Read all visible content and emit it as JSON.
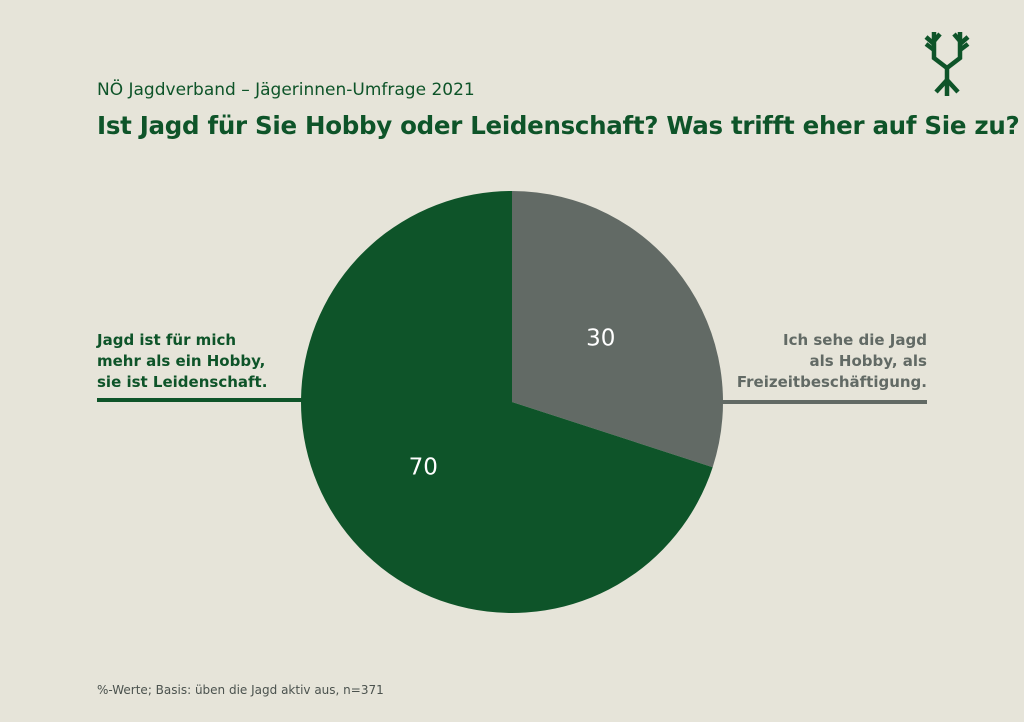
{
  "header": {
    "subtitle": "NÖ Jagdverband – Jägerinnen-Umfrage 2021",
    "title": "Ist Jagd für Sie Hobby oder Leidenschaft? Was trifft eher auf Sie zu?"
  },
  "logo": {
    "icon": "antler-tree-logo-icon"
  },
  "chart_data": {
    "type": "pie",
    "slices": [
      {
        "value": 30,
        "label": "30",
        "color": "#626a65",
        "legend": [
          "Ich sehe die Jagd",
          "als Hobby, als",
          "Freizeitbeschäftigung."
        ]
      },
      {
        "value": 70,
        "label": "70",
        "color": "#0e5429",
        "legend": [
          "Jagd ist für mich",
          "mehr als ein Hobby,",
          "sie ist Leidenschaft."
        ]
      }
    ],
    "start": "12 o'clock, clockwise"
  },
  "footnote": "%-Werte; Basis: üben die Jagd aktiv aus, n=371",
  "colors": {
    "background": "#e6e4d9",
    "accent_green": "#0e5429",
    "grey": "#626a65"
  }
}
